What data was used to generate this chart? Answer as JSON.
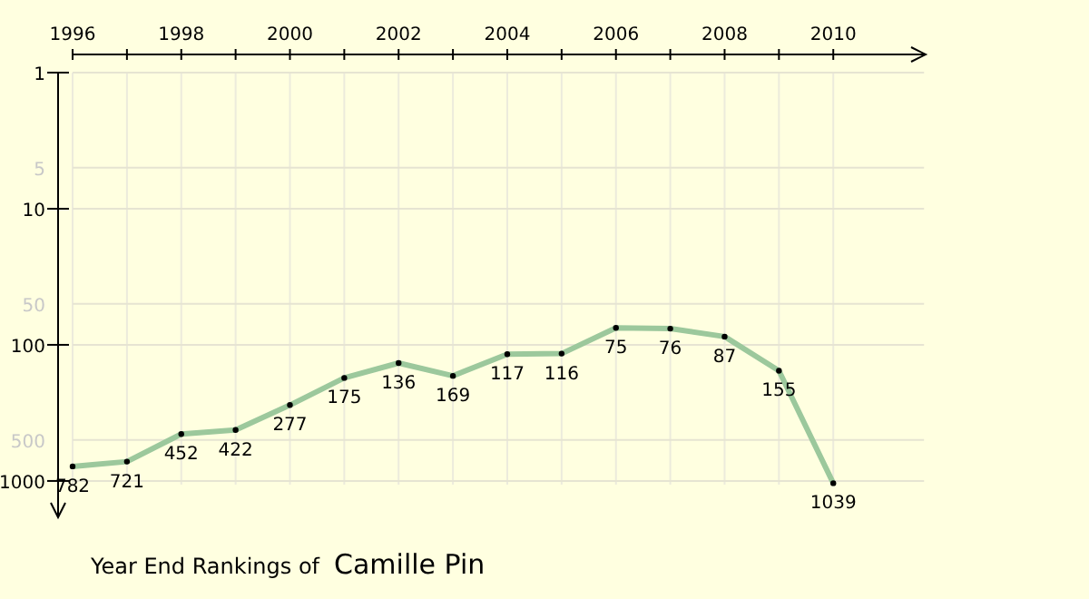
{
  "chart_data": {
    "type": "line",
    "title": "Year End Rankings of",
    "subtitle": "Camille Pin",
    "x": [
      1996,
      1997,
      1998,
      1999,
      2000,
      2001,
      2002,
      2003,
      2004,
      2005,
      2006,
      2007,
      2008,
      2009,
      2010
    ],
    "series": [
      {
        "color": "#9cc89c",
        "values": [
          782,
          721,
          452,
          422,
          277,
          175,
          136,
          169,
          117,
          116,
          75,
          76,
          87,
          155,
          1039
        ]
      }
    ],
    "xlim": [
      1996,
      2011.7
    ],
    "xticks": [
      1996,
      {
        "value": 1997,
        "label": null
      },
      1998,
      {
        "value": 1999,
        "label": null
      },
      2000,
      {
        "value": 2001,
        "label": null
      },
      2002,
      {
        "value": 2003,
        "label": null
      },
      2004,
      {
        "value": 2005,
        "label": null
      },
      2006,
      {
        "value": 2007,
        "label": null
      },
      2008,
      {
        "value": 2009,
        "label": null
      },
      2010
    ],
    "ylim": [
      1850,
      1
    ],
    "yticks": [
      1,
      5,
      10,
      50,
      100,
      500,
      1000
    ],
    "log": true,
    "grid": true,
    "marker": "circle",
    "line_style": "solid",
    "data_labels": true
  }
}
